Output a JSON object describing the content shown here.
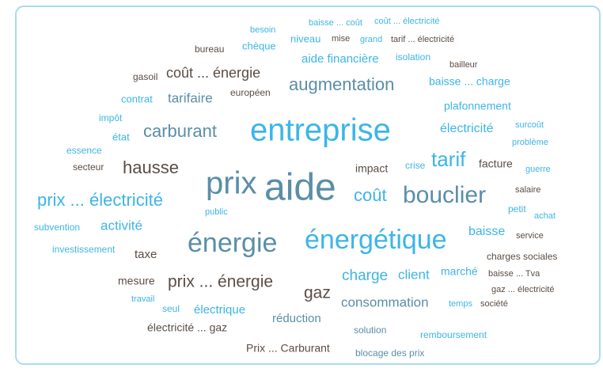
{
  "words": [
    "besoin",
    "baisse ... coût",
    "coût ... électricité",
    "chèque",
    "niveau",
    "mise",
    "grand",
    "tarif ... électricité",
    "bureau",
    "coût ... énergie",
    "aide financière",
    "isolation",
    "bailleur",
    "gasoil",
    "augmentation",
    "baisse ... charge",
    "contrat",
    "tarifaire",
    "européen",
    "plafonnement",
    "impôt",
    "état",
    "carburant",
    "entreprise",
    "électricité",
    "surcoût",
    "problème",
    "essence",
    "secteur",
    "hausse",
    "impact",
    "crise",
    "tarif",
    "facture",
    "guerre",
    "prix",
    "aide",
    "coût",
    "bouclier",
    "salaire",
    "prix ... électricité",
    "public",
    "petit",
    "achat",
    "subvention",
    "activité",
    "baisse",
    "énergie",
    "énergétique",
    "service",
    "investissement",
    "taxe",
    "charges sociales",
    "mesure",
    "prix ... énergie",
    "charge",
    "client",
    "marché",
    "baisse ... Tva",
    "gaz ... électricité",
    "travail",
    "gaz",
    "seul",
    "électrique",
    "consommation",
    "temps",
    "société",
    "électricité ... gaz",
    "réduction",
    "solution",
    "remboursement",
    "Prix ... Carburant",
    "blocage des prix"
  ]
}
